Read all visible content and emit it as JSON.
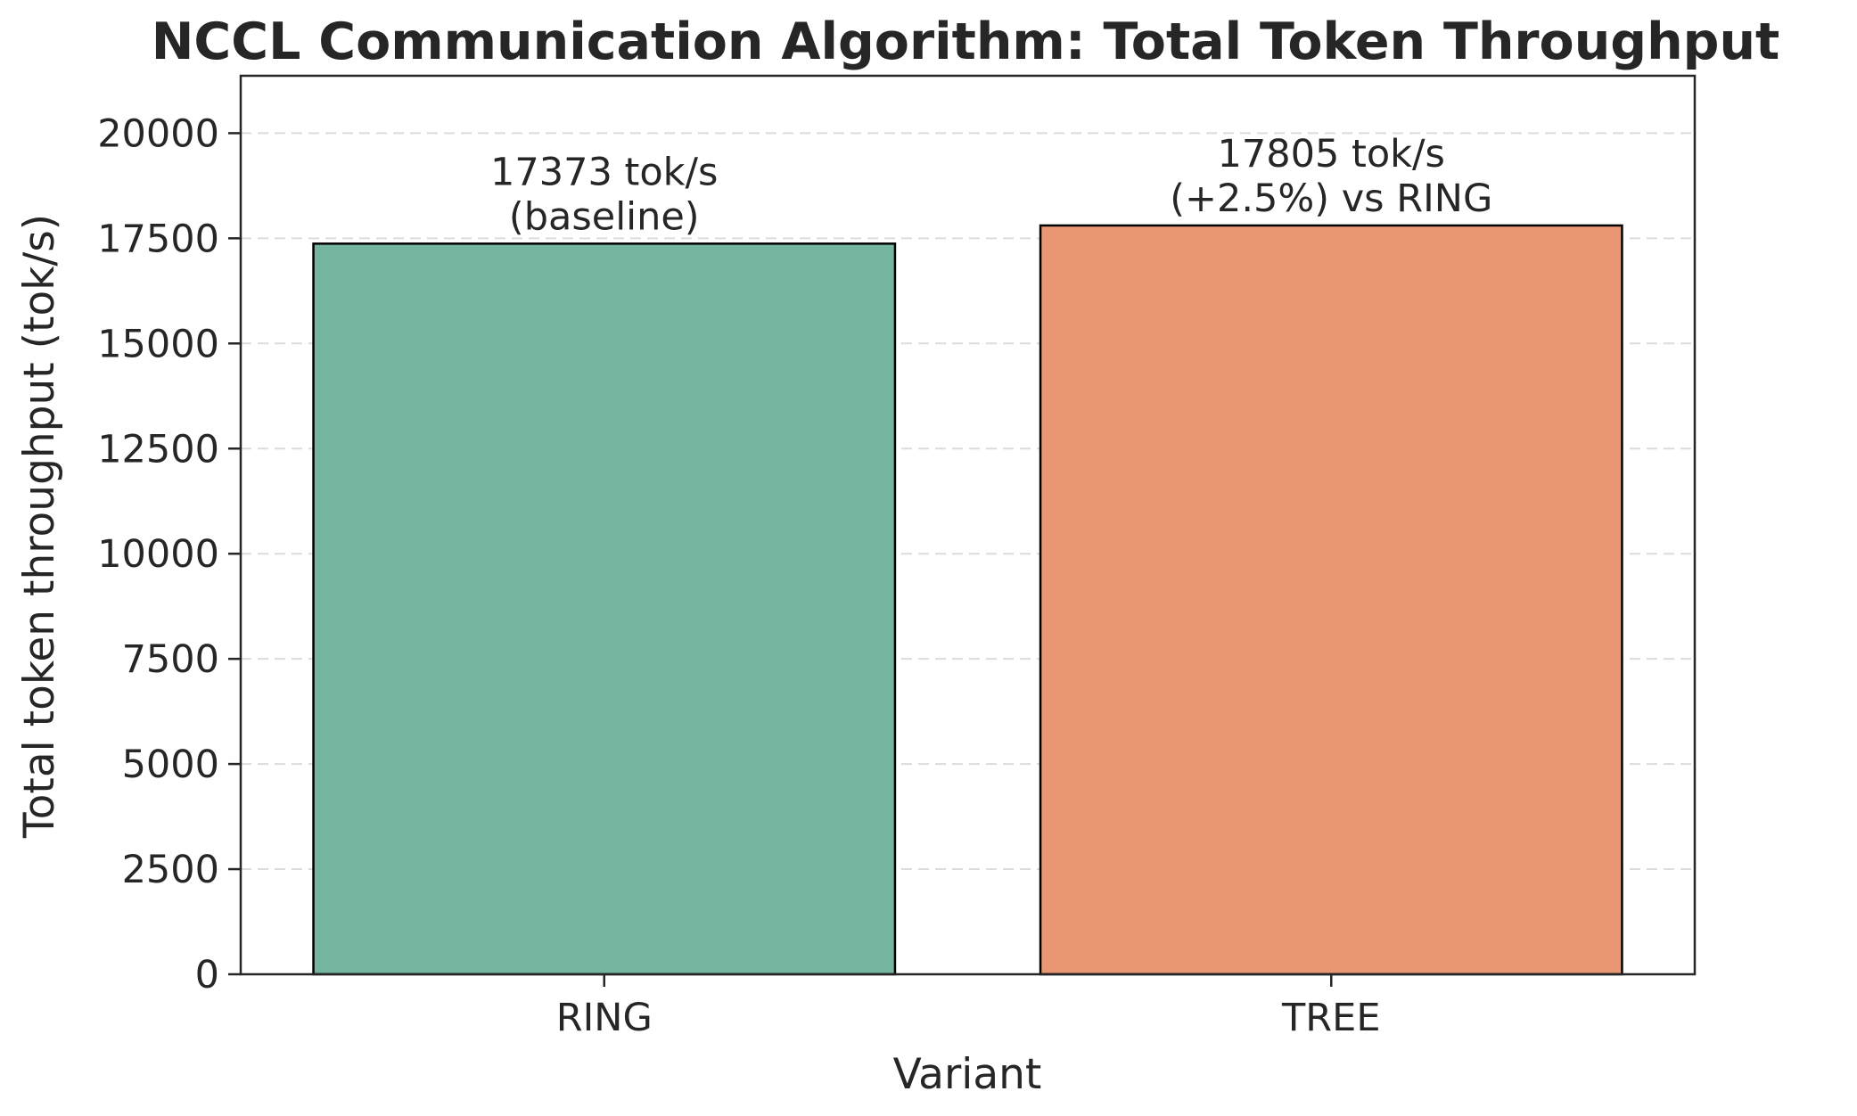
{
  "chart_data": {
    "type": "bar",
    "title": "NCCL Communication Algorithm: Total Token Throughput",
    "xlabel": "Variant",
    "ylabel": "Total token throughput (tok/s)",
    "categories": [
      "RING",
      "TREE"
    ],
    "values": [
      17373,
      17805
    ],
    "bar_colors": [
      "#75b5a0",
      "#e89674"
    ],
    "bar_labels": [
      [
        "17373 tok/s",
        "(baseline)"
      ],
      [
        "17805 tok/s",
        "(+2.5%) vs RING"
      ]
    ],
    "ylim": [
      0,
      21365
    ],
    "yticks": [
      0,
      2500,
      5000,
      7500,
      10000,
      12500,
      15000,
      17500,
      20000
    ],
    "ytick_labels": [
      "0",
      "2500",
      "5000",
      "7500",
      "10000",
      "12500",
      "15000",
      "17500",
      "20000"
    ],
    "grid": "y-dashed",
    "legend": "none"
  }
}
